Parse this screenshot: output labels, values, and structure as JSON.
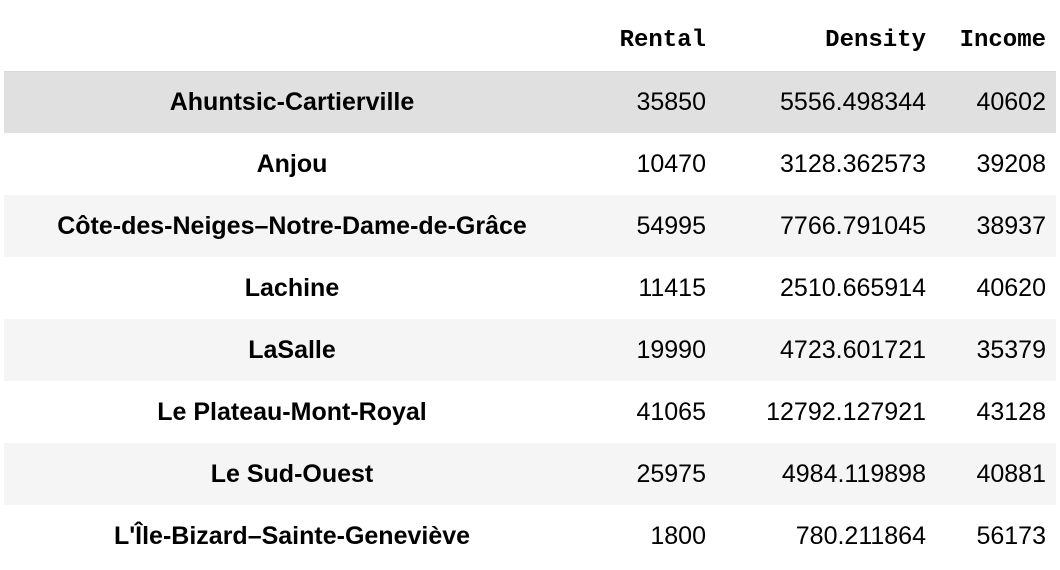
{
  "table": {
    "columns": [
      "",
      "Rental",
      "Density",
      "Income"
    ],
    "rows": [
      {
        "name": "Ahuntsic-Cartierville",
        "rental": "35850",
        "density": "5556.498344",
        "income": "40602"
      },
      {
        "name": "Anjou",
        "rental": "10470",
        "density": "3128.362573",
        "income": "39208"
      },
      {
        "name": "Côte-des-Neiges–Notre-Dame-de-Grâce",
        "rental": "54995",
        "density": "7766.791045",
        "income": "38937"
      },
      {
        "name": "Lachine",
        "rental": "11415",
        "density": "2510.665914",
        "income": "40620"
      },
      {
        "name": "LaSalle",
        "rental": "19990",
        "density": "4723.601721",
        "income": "35379"
      },
      {
        "name": "Le Plateau-Mont-Royal",
        "rental": "41065",
        "density": "12792.127921",
        "income": "43128"
      },
      {
        "name": "Le Sud-Ouest",
        "rental": "25975",
        "density": "4984.119898",
        "income": "40881"
      },
      {
        "name": "L'Île-Bizard–Sainte-Geneviève",
        "rental": "1800",
        "density": "780.211864",
        "income": "56173"
      }
    ]
  },
  "colors": {
    "header_border": "#d8d8d8",
    "row_stripe": "#f5f5f5",
    "row_hover": "#e0e0e0"
  }
}
